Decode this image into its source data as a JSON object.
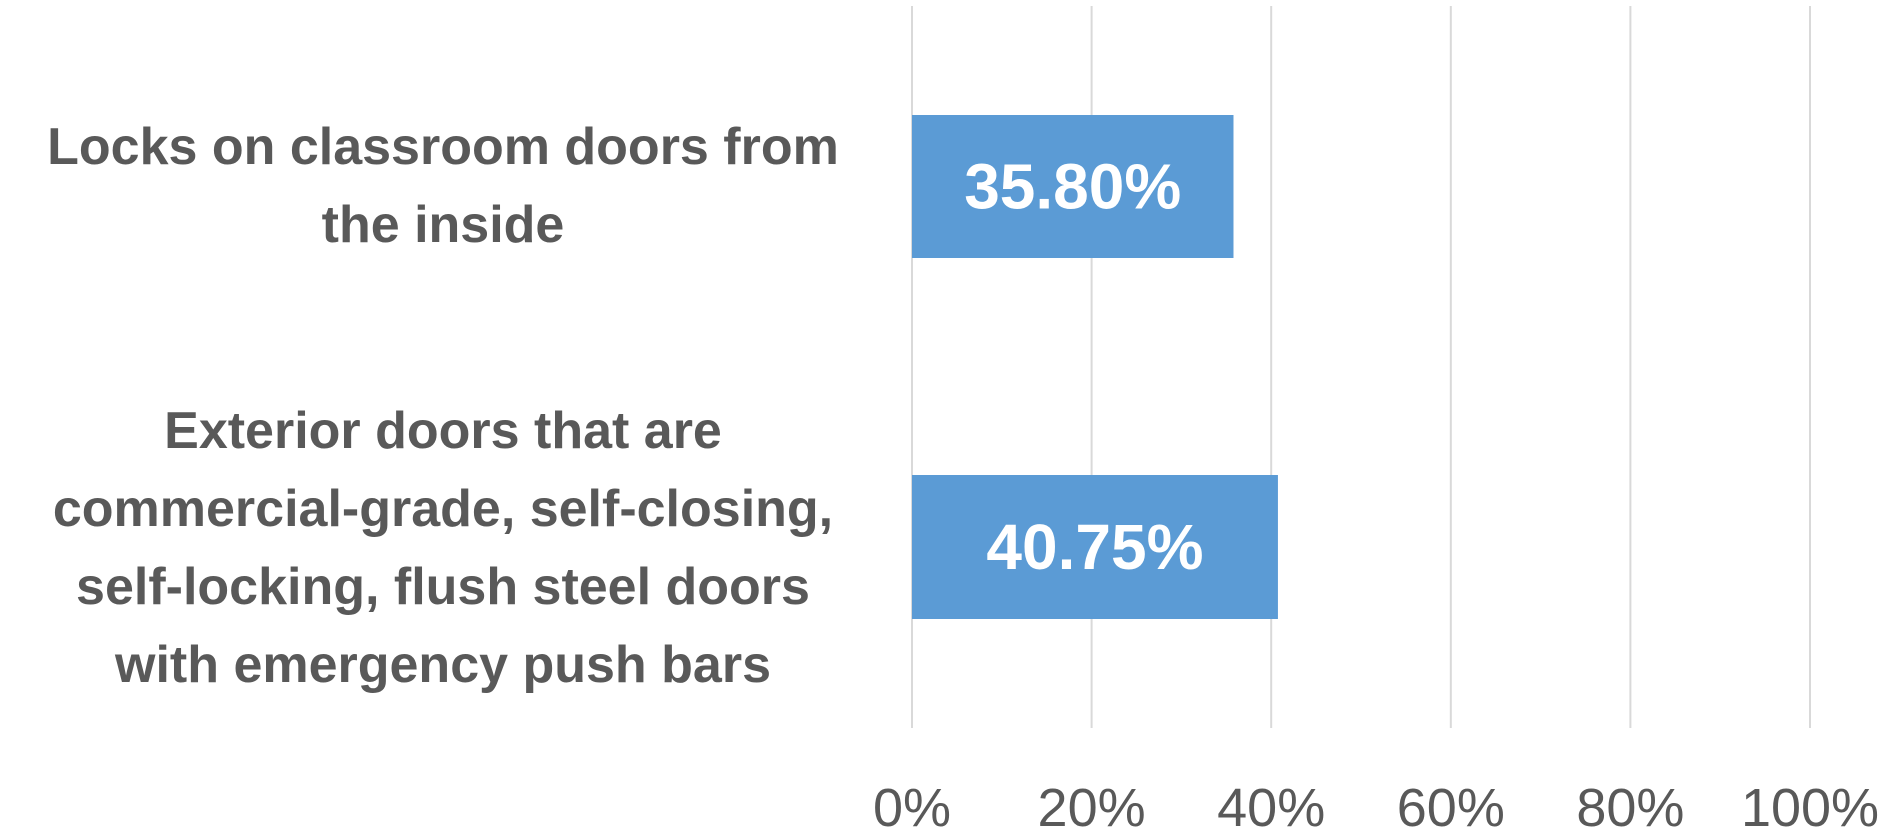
{
  "chart_data": {
    "type": "bar",
    "orientation": "horizontal",
    "categories": [
      "Locks on classroom doors from the inside",
      "Exterior doors that are commercial-grade, self-closing, self-locking, flush steel doors with emergency push bars"
    ],
    "values": [
      35.8,
      40.75
    ],
    "data_labels": [
      "35.80%",
      "40.75%"
    ],
    "xlim": [
      0,
      100
    ],
    "x_ticks": [
      0,
      20,
      40,
      60,
      80,
      100
    ],
    "x_tick_labels": [
      "0%",
      "20%",
      "40%",
      "60%",
      "80%",
      "100%"
    ],
    "title": "",
    "xlabel": "",
    "ylabel": "",
    "grid": true,
    "legend": "none",
    "colors": {
      "bar": "#5B9BD5",
      "gridline": "#D9D9D9",
      "text": "#595959",
      "data_label": "#FFFFFF"
    }
  }
}
